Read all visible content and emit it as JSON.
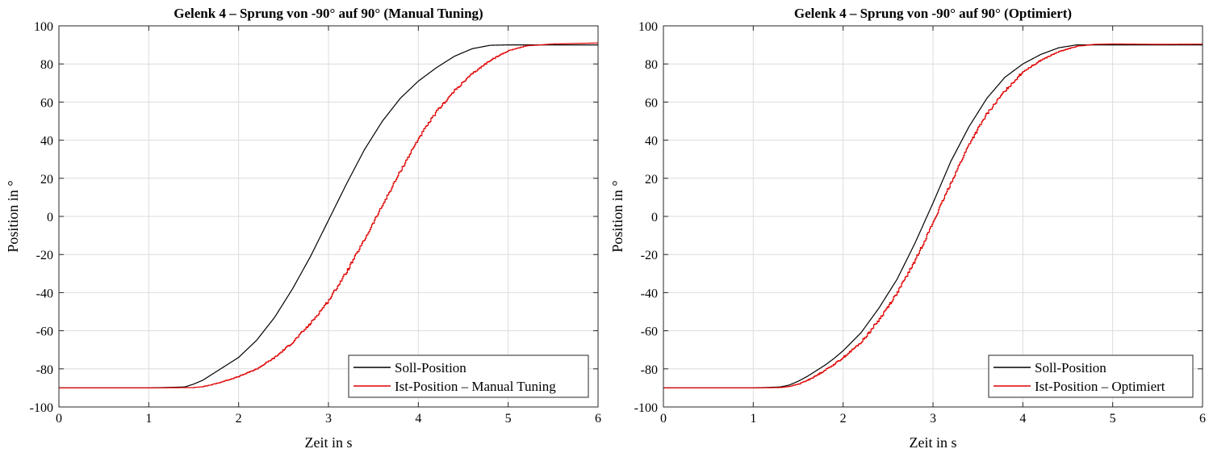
{
  "colors": {
    "soll": "#000000",
    "ist": "#e00000",
    "grid": "#dcdcdc",
    "axis": "#262626"
  },
  "chart_data": [
    {
      "type": "line",
      "title": "Gelenk 4 – Sprung von -90° auf 90° (Manual Tuning)",
      "xlabel": "Zeit in s",
      "ylabel": "Position in °",
      "xlim": [
        0,
        6
      ],
      "ylim": [
        -100,
        100
      ],
      "xticks": [
        "0",
        "1",
        "2",
        "3",
        "4",
        "5",
        "6"
      ],
      "yticks": [
        "100",
        "80",
        "60",
        "40",
        "20",
        "0",
        "-20",
        "-40",
        "-60",
        "-80",
        "-100"
      ],
      "grid": true,
      "legend_position": "bottom-right",
      "series": [
        {
          "name": "Soll-Position",
          "color": "#000000",
          "x": [
            0,
            0.5,
            1.0,
            1.4,
            1.5,
            1.6,
            1.7,
            1.8,
            1.9,
            2.0,
            2.2,
            2.4,
            2.6,
            2.8,
            3.0,
            3.2,
            3.4,
            3.6,
            3.8,
            4.0,
            4.2,
            4.4,
            4.6,
            4.8,
            5.0,
            5.5,
            6.0
          ],
          "y": [
            -90,
            -90,
            -90,
            -89.5,
            -88,
            -86,
            -83,
            -80,
            -77,
            -74,
            -65,
            -53,
            -38,
            -21,
            -2,
            17,
            35,
            50,
            62,
            71,
            78,
            84,
            88,
            89.8,
            90,
            90,
            90
          ]
        },
        {
          "name": "Ist-Position – Manual Tuning",
          "color": "#e00000",
          "x": [
            0,
            0.5,
            1.0,
            1.5,
            1.6,
            1.7,
            1.8,
            1.9,
            2.0,
            2.1,
            2.2,
            2.4,
            2.6,
            2.8,
            3.0,
            3.2,
            3.4,
            3.6,
            3.8,
            4.0,
            4.2,
            4.4,
            4.6,
            4.8,
            5.0,
            5.2,
            5.5,
            6.0
          ],
          "y": [
            -90,
            -90,
            -90,
            -89.8,
            -89.3,
            -88.3,
            -87,
            -85.5,
            -84,
            -82,
            -80,
            -74,
            -66,
            -56,
            -44,
            -29,
            -12,
            6,
            24,
            41,
            55,
            66,
            75,
            82,
            87,
            89.5,
            90.5,
            91
          ]
        }
      ]
    },
    {
      "type": "line",
      "title": "Gelenk 4 – Sprung von -90° auf 90° (Optimiert)",
      "xlabel": "Zeit in s",
      "ylabel": "Position in °",
      "xlim": [
        0,
        6
      ],
      "ylim": [
        -100,
        100
      ],
      "xticks": [
        "0",
        "1",
        "2",
        "3",
        "4",
        "5",
        "6"
      ],
      "yticks": [
        "100",
        "80",
        "60",
        "40",
        "20",
        "0",
        "-20",
        "-40",
        "-60",
        "-80",
        "-100"
      ],
      "grid": true,
      "legend_position": "bottom-right",
      "series": [
        {
          "name": "Soll-Position",
          "color": "#000000",
          "x": [
            0,
            0.5,
            1.0,
            1.3,
            1.4,
            1.5,
            1.6,
            1.7,
            1.8,
            1.9,
            2.0,
            2.2,
            2.4,
            2.6,
            2.8,
            3.0,
            3.2,
            3.4,
            3.6,
            3.8,
            4.0,
            4.2,
            4.4,
            4.6,
            4.7,
            5.0,
            6.0
          ],
          "y": [
            -90,
            -90,
            -90,
            -89.5,
            -88.5,
            -86.5,
            -84,
            -81,
            -78,
            -74.5,
            -70.5,
            -61,
            -48,
            -33,
            -14,
            7,
            29,
            47,
            62,
            73,
            80,
            85,
            88.5,
            90,
            90,
            90,
            90
          ]
        },
        {
          "name": "Ist-Position – Optimiert",
          "color": "#e00000",
          "x": [
            0,
            0.5,
            1.0,
            1.3,
            1.4,
            1.5,
            1.6,
            1.7,
            1.8,
            1.9,
            2.0,
            2.2,
            2.4,
            2.6,
            2.8,
            3.0,
            3.2,
            3.4,
            3.6,
            3.8,
            4.0,
            4.2,
            4.4,
            4.6,
            4.8,
            5.0,
            5.5,
            6.0
          ],
          "y": [
            -90,
            -90,
            -90,
            -89.8,
            -89.2,
            -88,
            -86,
            -83.5,
            -80.5,
            -77.5,
            -74,
            -66,
            -54,
            -40,
            -23,
            -3,
            18,
            38,
            54,
            66,
            76,
            82,
            86.5,
            89.3,
            90.3,
            90.5,
            90.3,
            90.4
          ]
        }
      ]
    }
  ]
}
